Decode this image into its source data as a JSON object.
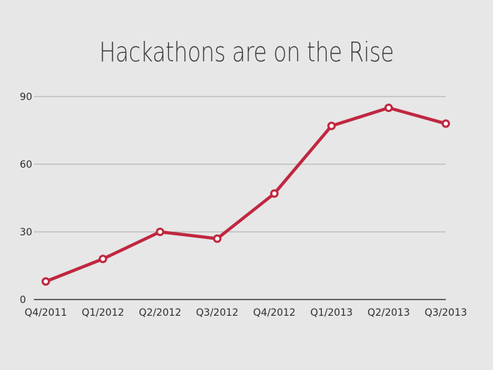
{
  "chart_data": {
    "type": "line",
    "title": "Hackathons are on the Rise",
    "xlabel": "",
    "ylabel": "",
    "categories": [
      "Q4/2011",
      "Q1/2012",
      "Q2/2012",
      "Q3/2012",
      "Q4/2012",
      "Q1/2013",
      "Q2/2013",
      "Q3/2013"
    ],
    "series": [
      {
        "values": [
          8,
          18,
          30,
          27,
          47,
          77,
          85,
          78
        ]
      }
    ],
    "ylim": [
      0,
      90
    ],
    "yticks": [
      0,
      30,
      60,
      90
    ],
    "grid": true,
    "legend": "none",
    "colors": {
      "line": "#c0273f",
      "marker_fill": "#ffffff",
      "grid": "#a9a9a9",
      "axis": "#3a3a3a",
      "background": "#e7e7e7"
    }
  }
}
